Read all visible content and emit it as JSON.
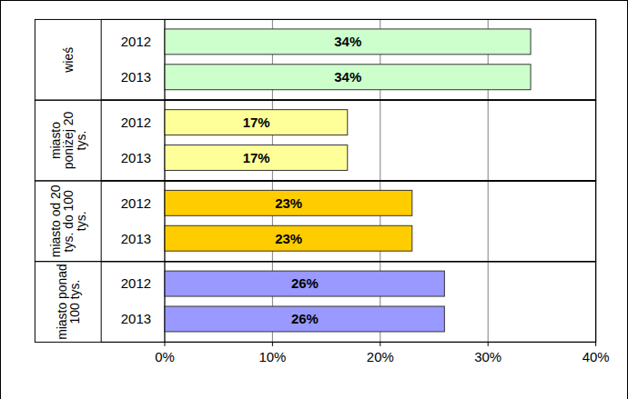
{
  "chart_data": {
    "type": "bar",
    "orientation": "horizontal",
    "groups": [
      {
        "name": "wieś",
        "color": "#ccffcc",
        "categories": [
          "2012",
          "2013"
        ],
        "values": [
          34,
          34
        ],
        "value_labels": [
          "34%",
          "34%"
        ]
      },
      {
        "name": "miasto poniżej 20 tys.",
        "color": "#ffff99",
        "categories": [
          "2012",
          "2013"
        ],
        "values": [
          17,
          17
        ],
        "value_labels": [
          "17%",
          "17%"
        ]
      },
      {
        "name": "miasto od 20 tys. do 100 tys.",
        "color": "#ffcc00",
        "categories": [
          "2012",
          "2013"
        ],
        "values": [
          23,
          23
        ],
        "value_labels": [
          "23%",
          "23%"
        ]
      },
      {
        "name": "miasto ponad 100 tys.",
        "color": "#9999ff",
        "categories": [
          "2012",
          "2013"
        ],
        "values": [
          26,
          26
        ],
        "value_labels": [
          "26%",
          "26%"
        ]
      }
    ],
    "xlim": [
      0,
      40
    ],
    "xticks": [
      {
        "value": 0,
        "label": "0%"
      },
      {
        "value": 10,
        "label": "10%"
      },
      {
        "value": 20,
        "label": "20%"
      },
      {
        "value": 30,
        "label": "30%"
      },
      {
        "value": 40,
        "label": "40%"
      }
    ],
    "grid": true,
    "data_labels": true
  }
}
